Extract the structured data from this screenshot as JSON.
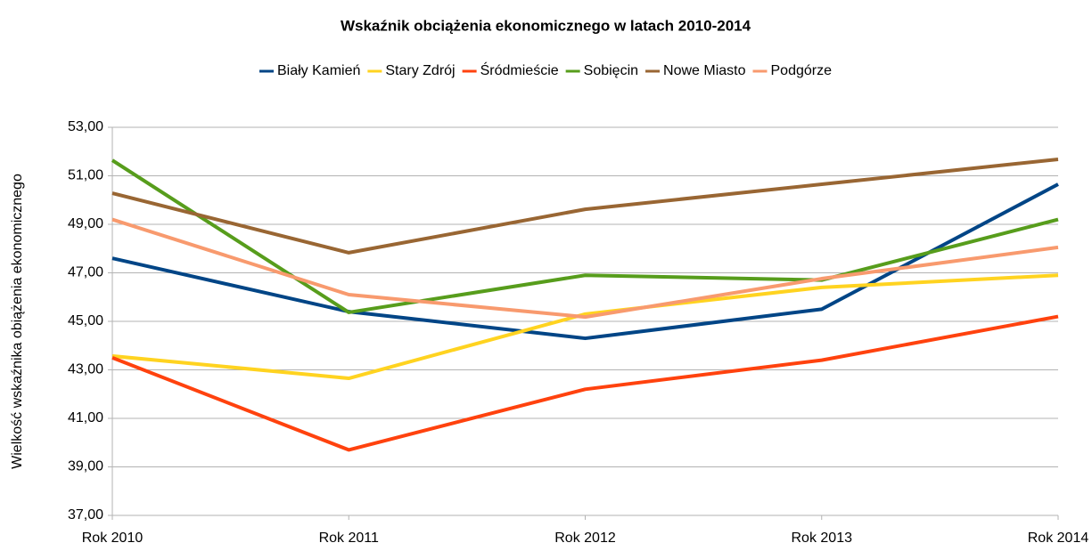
{
  "chart_data": {
    "type": "line",
    "title": "Wskaźnik obciążenia ekonomicznego w latach 2010-2014",
    "y_label": "Wielkość wskaźnika obiążenia ekonomicznego",
    "categories": [
      "Rok 2010",
      "Rok 2011",
      "Rok 2012",
      "Rok 2013",
      "Rok 2014"
    ],
    "series": [
      {
        "name": "Biały Kamień",
        "color": "#004586",
        "values": [
          47.6,
          45.4,
          44.3,
          45.5,
          50.65
        ]
      },
      {
        "name": "Stary Zdrój",
        "color": "#ffd320",
        "values": [
          43.57,
          42.65,
          45.3,
          46.4,
          46.9
        ]
      },
      {
        "name": "Śródmieście",
        "color": "#ff420e",
        "values": [
          43.5,
          39.7,
          42.2,
          43.4,
          45.2
        ]
      },
      {
        "name": "Sobięcin",
        "color": "#579d1c",
        "values": [
          51.64,
          45.37,
          46.9,
          46.7,
          49.2
        ]
      },
      {
        "name": "Nowe Miasto",
        "color": "#996633",
        "values": [
          50.28,
          47.83,
          49.62,
          50.65,
          51.68
        ]
      },
      {
        "name": "Podgórze",
        "color": "#f89a6e",
        "values": [
          49.2,
          46.1,
          45.18,
          46.76,
          48.05
        ]
      }
    ],
    "ylim": [
      37,
      53
    ],
    "yticks": [
      {
        "value": 37,
        "label": "37,00"
      },
      {
        "value": 39,
        "label": "39,00"
      },
      {
        "value": 41,
        "label": "41,00"
      },
      {
        "value": 43,
        "label": "43,00"
      },
      {
        "value": 45,
        "label": "45,00"
      },
      {
        "value": 47,
        "label": "47,00"
      },
      {
        "value": 49,
        "label": "49,00"
      },
      {
        "value": 51,
        "label": "51,00"
      },
      {
        "value": 53,
        "label": "53,00"
      }
    ],
    "grid": true
  }
}
